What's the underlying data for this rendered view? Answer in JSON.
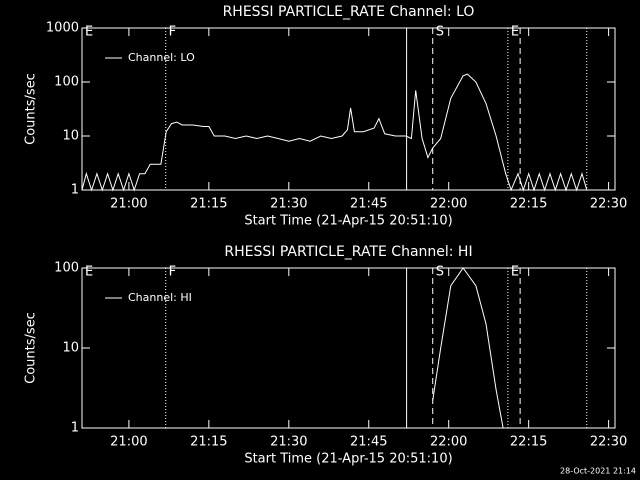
{
  "chart_data": [
    {
      "type": "line",
      "title": "RHESSI PARTICLE_RATE Channel: LO",
      "x_label": "Start Time (21-Apr-15 20:51:10)",
      "y_label": "Counts/sec",
      "xlim": [
        -8.8,
        91.2
      ],
      "ylim": [
        1,
        1000
      ],
      "log_y": true,
      "xticks": [
        {
          "value": 0,
          "label": "21:00"
        },
        {
          "value": 15,
          "label": "21:15"
        },
        {
          "value": 30,
          "label": "21:30"
        },
        {
          "value": 45,
          "label": "21:45"
        },
        {
          "value": 60,
          "label": "22:00"
        },
        {
          "value": 75,
          "label": "22:15"
        },
        {
          "value": 90,
          "label": "22:30"
        }
      ],
      "yticks": [
        1,
        10,
        100,
        1000
      ],
      "legend": "upper left",
      "events": [
        {
          "x": -8.8,
          "style": "none",
          "label": "E"
        },
        {
          "x": 6.9,
          "style": "dotted",
          "label": "F"
        },
        {
          "x": 52.1,
          "style": "solid"
        },
        {
          "x": 57,
          "style": "dashed",
          "label": "S"
        },
        {
          "x": 71.1,
          "style": "dotted",
          "label": "E"
        },
        {
          "x": 73.4,
          "style": "dashed"
        },
        {
          "x": 85.9,
          "style": "dotted"
        }
      ],
      "series": [
        {
          "name": "Channel: LO",
          "color": "#ffffff",
          "x": [
            -8.8,
            -8,
            -7,
            -6,
            -5,
            -4,
            -3,
            -2,
            -1,
            0,
            1,
            2,
            3,
            4,
            5,
            6,
            7,
            8,
            9,
            10,
            12,
            14,
            15,
            16,
            18,
            20,
            22,
            24,
            26,
            28,
            30,
            32,
            34,
            36,
            38,
            40,
            41,
            41.6,
            42.3,
            44,
            46,
            46.9,
            48,
            50,
            52,
            53,
            53.8,
            55,
            56.1,
            57,
            58.5,
            60.4,
            62.7,
            63.5,
            65.1,
            67,
            68.9,
            70.7,
            71.7,
            73,
            74,
            75,
            76,
            77,
            78,
            79,
            80,
            81,
            82,
            83,
            84,
            85,
            85.9
          ],
          "values": [
            1,
            2,
            1,
            2,
            1,
            2,
            1,
            2,
            1,
            2,
            1,
            2,
            2,
            3,
            3,
            3,
            12,
            17,
            18,
            16,
            16,
            15,
            15,
            10,
            10,
            9,
            10,
            9,
            10,
            9,
            8,
            9,
            8,
            10,
            9,
            10,
            13,
            33,
            12,
            12,
            14,
            21,
            11,
            10,
            10,
            9,
            70,
            9,
            4,
            6,
            9,
            50,
            130,
            140,
            100,
            40,
            10,
            2,
            1,
            2,
            1,
            2,
            1,
            2,
            1,
            2,
            1,
            2,
            1,
            2,
            1,
            2,
            1
          ]
        }
      ]
    },
    {
      "type": "line",
      "title": "RHESSI PARTICLE_RATE Channel: HI",
      "x_label": "Start Time (21-Apr-15 20:51:10)",
      "y_label": "Counts/sec",
      "xlim": [
        -8.8,
        91.2
      ],
      "ylim": [
        1,
        100
      ],
      "log_y": true,
      "xticks": [
        {
          "value": 0,
          "label": "21:00"
        },
        {
          "value": 15,
          "label": "21:15"
        },
        {
          "value": 30,
          "label": "21:30"
        },
        {
          "value": 45,
          "label": "21:45"
        },
        {
          "value": 60,
          "label": "22:00"
        },
        {
          "value": 75,
          "label": "22:15"
        },
        {
          "value": 90,
          "label": "22:30"
        }
      ],
      "yticks": [
        1,
        10,
        100
      ],
      "legend": "upper left",
      "events": [
        {
          "x": -8.8,
          "style": "none",
          "label": "E"
        },
        {
          "x": 6.9,
          "style": "dotted",
          "label": "F"
        },
        {
          "x": 52.1,
          "style": "solid"
        },
        {
          "x": 57,
          "style": "dashed",
          "label": "S"
        },
        {
          "x": 71.1,
          "style": "dotted",
          "label": "E"
        },
        {
          "x": 73.4,
          "style": "dashed"
        },
        {
          "x": 85.9,
          "style": "dotted"
        }
      ],
      "series": [
        {
          "name": "Channel: HI",
          "color": "#ffffff",
          "x": [
            57,
            58.5,
            60.4,
            62.7,
            65.1,
            67,
            68.9,
            70.2
          ],
          "values": [
            2.2,
            10,
            60,
            100,
            60,
            20,
            3,
            1
          ]
        }
      ]
    }
  ],
  "footer": "28-Oct-2021 21:14"
}
